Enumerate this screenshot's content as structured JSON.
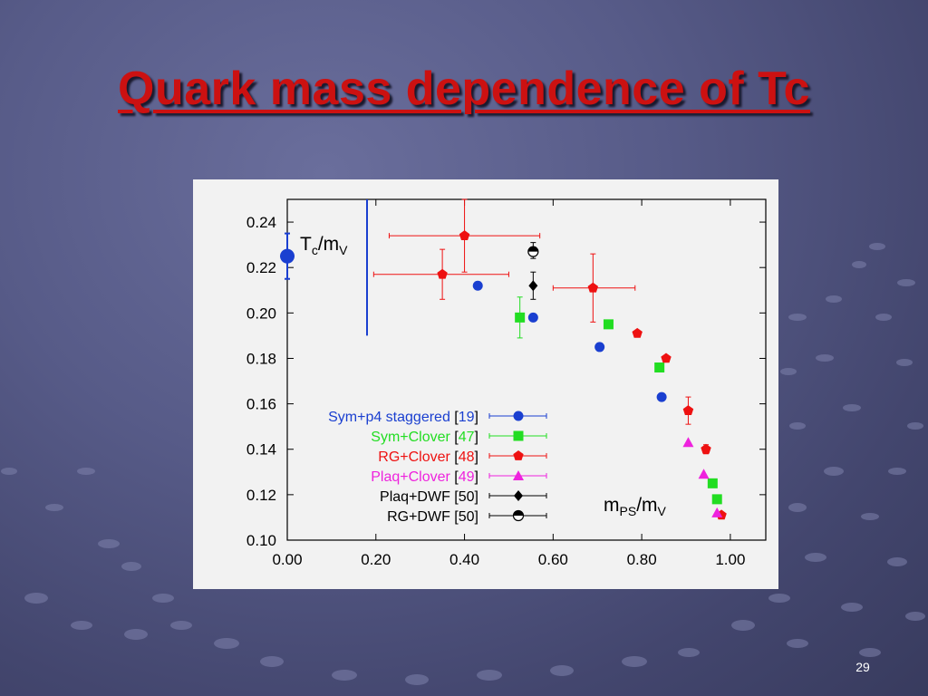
{
  "slide": {
    "title": "Quark mass dependence of Tc",
    "page_number": "29"
  },
  "colors": {
    "title": "#cc1111",
    "background": "#575b88",
    "panel": "#f2f2f2"
  },
  "chart_data": {
    "type": "scatter",
    "ylabel_main": "T",
    "ylabel_sub": "c",
    "ylabel_main2": "/m",
    "ylabel_sub2": "V",
    "xlabel_main": "m",
    "xlabel_sub": "PS",
    "xlabel_main2": "/m",
    "xlabel_sub2": "V",
    "xlim": [
      0.0,
      1.08
    ],
    "ylim": [
      0.1,
      0.25
    ],
    "x_ticks": [
      "0.00",
      "0.20",
      "0.40",
      "0.60",
      "0.80",
      "1.00"
    ],
    "x_tick_values": [
      0.0,
      0.2,
      0.4,
      0.6,
      0.8,
      1.0
    ],
    "y_ticks": [
      "0.10",
      "0.12",
      "0.14",
      "0.16",
      "0.18",
      "0.20",
      "0.22",
      "0.24"
    ],
    "y_tick_values": [
      0.1,
      0.12,
      0.14,
      0.16,
      0.18,
      0.2,
      0.22,
      0.24
    ],
    "grid": false,
    "legend_position": "bottom-left",
    "vertical_line": {
      "x": 0.18,
      "y_from": 0.19,
      "y_to": 0.25,
      "color": "#1a3fd0"
    },
    "series": [
      {
        "name": "Sym+p4 staggered",
        "ref": "[19]",
        "color": "#1a3fd0",
        "marker": "circle",
        "points": [
          {
            "x": 0.0,
            "y": 0.225,
            "ylo": 0.215,
            "yhi": 0.235,
            "big": true
          },
          {
            "x": 0.43,
            "y": 0.212
          },
          {
            "x": 0.555,
            "y": 0.198,
            "xlo": 0.548,
            "xhi": 0.562
          },
          {
            "x": 0.705,
            "y": 0.185
          },
          {
            "x": 0.845,
            "y": 0.163,
            "xlo": 0.837,
            "xhi": 0.853
          }
        ]
      },
      {
        "name": "Sym+Clover",
        "ref": "[47]",
        "color": "#22dd22",
        "marker": "square",
        "points": [
          {
            "x": 0.525,
            "y": 0.198,
            "ylo": 0.189,
            "yhi": 0.207
          },
          {
            "x": 0.725,
            "y": 0.195
          },
          {
            "x": 0.84,
            "y": 0.176
          },
          {
            "x": 0.96,
            "y": 0.125
          },
          {
            "x": 0.97,
            "y": 0.118
          }
        ]
      },
      {
        "name": "RG+Clover",
        "ref": "[48]",
        "color": "#ee1111",
        "marker": "pentagon",
        "points": [
          {
            "x": 0.35,
            "y": 0.217,
            "xlo": 0.195,
            "xhi": 0.5,
            "ylo": 0.206,
            "yhi": 0.228
          },
          {
            "x": 0.4,
            "y": 0.234,
            "xlo": 0.23,
            "xhi": 0.57,
            "ylo": 0.218,
            "yhi": 0.25
          },
          {
            "x": 0.69,
            "y": 0.211,
            "xlo": 0.6,
            "xhi": 0.785,
            "ylo": 0.196,
            "yhi": 0.226
          },
          {
            "x": 0.79,
            "y": 0.191
          },
          {
            "x": 0.855,
            "y": 0.18
          },
          {
            "x": 0.905,
            "y": 0.157,
            "ylo": 0.151,
            "yhi": 0.163
          },
          {
            "x": 0.945,
            "y": 0.14,
            "ylo": 0.138,
            "yhi": 0.142
          },
          {
            "x": 0.98,
            "y": 0.111
          }
        ]
      },
      {
        "name": "Plaq+Clover",
        "ref": "[49]",
        "color": "#ee22dd",
        "marker": "triangle",
        "points": [
          {
            "x": 0.905,
            "y": 0.143
          },
          {
            "x": 0.94,
            "y": 0.129
          },
          {
            "x": 0.97,
            "y": 0.112
          }
        ]
      },
      {
        "name": "Plaq+DWF",
        "ref": "[50]",
        "color": "#000000",
        "marker": "diamond",
        "points": [
          {
            "x": 0.555,
            "y": 0.212,
            "ylo": 0.206,
            "yhi": 0.218
          }
        ]
      },
      {
        "name": "RG+DWF",
        "ref": "[50]",
        "color": "#000000",
        "marker": "half-circle",
        "points": [
          {
            "x": 0.555,
            "y": 0.227,
            "ylo": 0.224,
            "yhi": 0.231
          }
        ]
      }
    ]
  }
}
